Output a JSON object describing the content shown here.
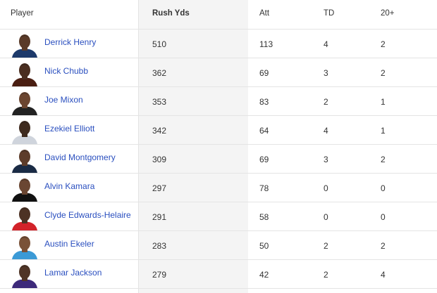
{
  "table": {
    "header": [
      "Player",
      "Rush Yds",
      "Att",
      "TD",
      "20+"
    ],
    "rows": [
      [
        "Derrick Henry",
        510,
        113,
        4,
        2
      ],
      [
        "Nick Chubb",
        362,
        69,
        3,
        2
      ],
      [
        "Joe Mixon",
        353,
        83,
        2,
        1
      ],
      [
        "Ezekiel Elliott",
        342,
        64,
        4,
        1
      ],
      [
        "David Montgomery",
        309,
        69,
        3,
        2
      ],
      [
        "Alvin Kamara",
        297,
        78,
        0,
        0
      ],
      [
        "Clyde Edwards-Helaire",
        291,
        58,
        0,
        0
      ],
      [
        "Austin Ekeler",
        283,
        50,
        2,
        2
      ],
      [
        "Lamar Jackson",
        279,
        42,
        2,
        4
      ]
    ]
  }
}
